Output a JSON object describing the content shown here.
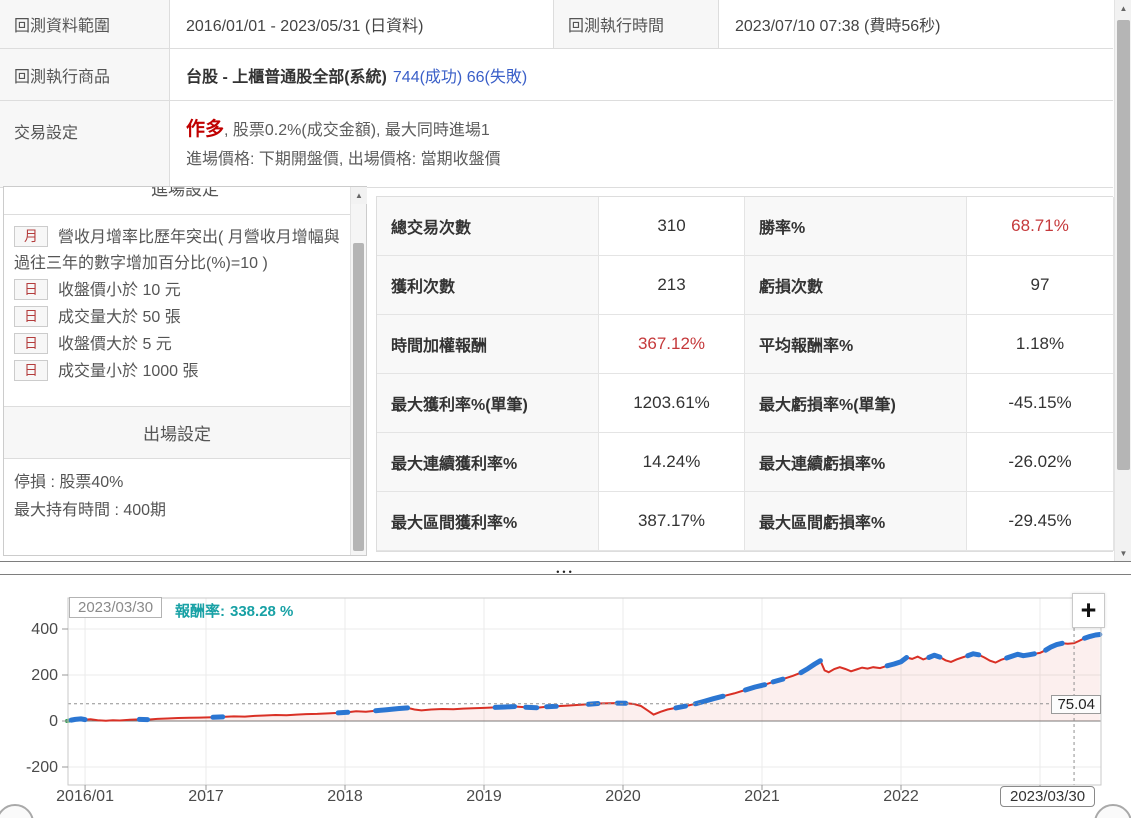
{
  "info": {
    "range_label": "回測資料範圍",
    "range_value": "2016/01/01 - 2023/05/31 (日資料)",
    "exec_label": "回測執行時間",
    "exec_value": "2023/07/10 07:38 (費時56秒)",
    "product_label": "回測執行商品",
    "product_name": "台股 - 上櫃普通股全部(系統)",
    "product_counts": "744(成功) 66(失敗)",
    "trade_label": "交易設定",
    "trade_direction": "作多",
    "trade_rest": ", 股票0.2%(成交金額), 最大同時進場1",
    "trade_line2": "進場價格: 下期開盤價, 出場價格: 當期收盤價"
  },
  "entry_panel": {
    "header_partial": "進場設定",
    "conditions": [
      {
        "badge": "月",
        "text": "營收月增率比歷年突出( 月營收月增幅與過往三年的數字增加百分比(%)=10 )"
      },
      {
        "badge": "日",
        "text": "收盤價小於 10 元"
      },
      {
        "badge": "日",
        "text": "成交量大於 50 張"
      },
      {
        "badge": "日",
        "text": "收盤價大於 5 元"
      },
      {
        "badge": "日",
        "text": "成交量小於 1000 張"
      }
    ],
    "exit_header": "出場設定",
    "exit_lines": [
      "停損 : 股票40%",
      "最大持有時間 : 400期"
    ]
  },
  "stats": {
    "rows": [
      {
        "l1": "總交易次數",
        "v1": "310",
        "r1": false,
        "l2": "勝率%",
        "v2": "68.71%",
        "r2": true
      },
      {
        "l1": "獲利次數",
        "v1": "213",
        "r1": false,
        "l2": "虧損次數",
        "v2": "97",
        "r2": false
      },
      {
        "l1": "時間加權報酬",
        "v1": "367.12%",
        "r1": true,
        "l2": "平均報酬率%",
        "v2": "1.18%",
        "r2": false
      },
      {
        "l1": "最大獲利率%(單筆)",
        "v1": "1203.61%",
        "r1": false,
        "l2": "最大虧損率%(單筆)",
        "v2": "-45.15%",
        "r2": false
      },
      {
        "l1": "最大連續獲利率%",
        "v1": "14.24%",
        "r1": false,
        "l2": "最大連續虧損率%",
        "v2": "-26.02%",
        "r2": false
      },
      {
        "l1": "最大區間獲利率%",
        "v1": "387.17%",
        "r1": false,
        "l2": "最大區間虧損率%",
        "v2": "-29.45%",
        "r2": false
      }
    ]
  },
  "chart": {
    "tooltip_date": "2023/03/30",
    "tooltip_label": "報酬率:",
    "tooltip_value": "338.28 %",
    "crosshair_value": "75.04",
    "crosshair_date": "2023/03/30",
    "zoom_button": "+"
  },
  "icons": {
    "scroll_up": "▲",
    "scroll_down": "▼",
    "splitter_dots": "•••"
  },
  "chart_data": {
    "type": "line",
    "series_name": "報酬率",
    "xlabel": "",
    "ylabel": "",
    "x_ticks": [
      {
        "t": 2016.13,
        "label": "2016/01"
      },
      {
        "t": 2017,
        "label": "2017"
      },
      {
        "t": 2018,
        "label": "2018"
      },
      {
        "t": 2019,
        "label": "2019"
      },
      {
        "t": 2020,
        "label": "2020"
      },
      {
        "t": 2021,
        "label": "2021"
      },
      {
        "t": 2022,
        "label": "2022"
      },
      {
        "t": 2023,
        "label": "2023"
      }
    ],
    "y_ticks": [
      400,
      200,
      0,
      -200
    ],
    "xlim": [
      2016.0,
      2023.45
    ],
    "ylim": [
      -278,
      535
    ],
    "grid": true,
    "crosshair": {
      "t": 2023.245,
      "value": 75.04,
      "date_label": "2023/03/30",
      "return_at_date": 338.28
    },
    "series": [
      {
        "name": "報酬率",
        "points": [
          [
            2016.0,
            0
          ],
          [
            2016.03,
            4
          ],
          [
            2016.06,
            7
          ],
          [
            2016.1,
            9
          ],
          [
            2016.13,
            6
          ],
          [
            2016.17,
            8
          ],
          [
            2016.22,
            3
          ],
          [
            2016.28,
            1
          ],
          [
            2016.33,
            3
          ],
          [
            2016.38,
            2
          ],
          [
            2016.45,
            5
          ],
          [
            2016.52,
            7
          ],
          [
            2016.58,
            6
          ],
          [
            2016.65,
            9
          ],
          [
            2016.72,
            11
          ],
          [
            2016.8,
            13
          ],
          [
            2016.88,
            14
          ],
          [
            2016.95,
            15
          ],
          [
            2017.05,
            16
          ],
          [
            2017.12,
            18
          ],
          [
            2017.2,
            20
          ],
          [
            2017.28,
            19
          ],
          [
            2017.35,
            22
          ],
          [
            2017.42,
            24
          ],
          [
            2017.5,
            26
          ],
          [
            2017.58,
            25
          ],
          [
            2017.65,
            28
          ],
          [
            2017.72,
            30
          ],
          [
            2017.8,
            31
          ],
          [
            2017.88,
            33
          ],
          [
            2017.95,
            35
          ],
          [
            2018.02,
            38
          ],
          [
            2018.08,
            42
          ],
          [
            2018.15,
            40
          ],
          [
            2018.22,
            45
          ],
          [
            2018.3,
            49
          ],
          [
            2018.38,
            54
          ],
          [
            2018.45,
            57
          ],
          [
            2018.5,
            50
          ],
          [
            2018.55,
            46
          ],
          [
            2018.62,
            50
          ],
          [
            2018.7,
            52
          ],
          [
            2018.78,
            51
          ],
          [
            2018.85,
            54
          ],
          [
            2018.92,
            55
          ],
          [
            2019.0,
            57
          ],
          [
            2019.08,
            59
          ],
          [
            2019.15,
            61
          ],
          [
            2019.22,
            63
          ],
          [
            2019.3,
            60
          ],
          [
            2019.38,
            58
          ],
          [
            2019.45,
            62
          ],
          [
            2019.52,
            64
          ],
          [
            2019.6,
            67
          ],
          [
            2019.68,
            70
          ],
          [
            2019.75,
            73
          ],
          [
            2019.82,
            76
          ],
          [
            2019.9,
            77
          ],
          [
            2019.96,
            78
          ],
          [
            2020.02,
            77
          ],
          [
            2020.08,
            74
          ],
          [
            2020.13,
            65
          ],
          [
            2020.18,
            45
          ],
          [
            2020.22,
            28
          ],
          [
            2020.27,
            40
          ],
          [
            2020.32,
            50
          ],
          [
            2020.38,
            57
          ],
          [
            2020.45,
            65
          ],
          [
            2020.52,
            75
          ],
          [
            2020.58,
            85
          ],
          [
            2020.65,
            97
          ],
          [
            2020.72,
            108
          ],
          [
            2020.8,
            120
          ],
          [
            2020.88,
            135
          ],
          [
            2020.95,
            148
          ],
          [
            2021.02,
            158
          ],
          [
            2021.08,
            170
          ],
          [
            2021.15,
            182
          ],
          [
            2021.22,
            196
          ],
          [
            2021.28,
            210
          ],
          [
            2021.33,
            228
          ],
          [
            2021.38,
            248
          ],
          [
            2021.42,
            262
          ],
          [
            2021.45,
            220
          ],
          [
            2021.48,
            212
          ],
          [
            2021.52,
            226
          ],
          [
            2021.56,
            234
          ],
          [
            2021.6,
            226
          ],
          [
            2021.64,
            216
          ],
          [
            2021.68,
            224
          ],
          [
            2021.72,
            232
          ],
          [
            2021.76,
            228
          ],
          [
            2021.8,
            234
          ],
          [
            2021.85,
            230
          ],
          [
            2021.9,
            240
          ],
          [
            2021.95,
            248
          ],
          [
            2022.0,
            258
          ],
          [
            2022.04,
            276
          ],
          [
            2022.08,
            270
          ],
          [
            2022.12,
            280
          ],
          [
            2022.16,
            268
          ],
          [
            2022.2,
            276
          ],
          [
            2022.24,
            286
          ],
          [
            2022.28,
            278
          ],
          [
            2022.32,
            264
          ],
          [
            2022.36,
            257
          ],
          [
            2022.4,
            268
          ],
          [
            2022.44,
            276
          ],
          [
            2022.48,
            284
          ],
          [
            2022.52,
            292
          ],
          [
            2022.56,
            288
          ],
          [
            2022.6,
            276
          ],
          [
            2022.64,
            262
          ],
          [
            2022.68,
            254
          ],
          [
            2022.72,
            266
          ],
          [
            2022.76,
            274
          ],
          [
            2022.8,
            282
          ],
          [
            2022.84,
            290
          ],
          [
            2022.88,
            284
          ],
          [
            2022.92,
            288
          ],
          [
            2022.96,
            292
          ],
          [
            2023.0,
            296
          ],
          [
            2023.04,
            308
          ],
          [
            2023.08,
            322
          ],
          [
            2023.12,
            332
          ],
          [
            2023.16,
            338
          ],
          [
            2023.2,
            336
          ],
          [
            2023.245,
            338.28
          ],
          [
            2023.28,
            348
          ],
          [
            2023.32,
            360
          ],
          [
            2023.36,
            368
          ],
          [
            2023.4,
            374
          ],
          [
            2023.43,
            376
          ]
        ]
      }
    ],
    "trade_segments": [
      [
        2016.03,
        2016.13
      ],
      [
        2016.5,
        2016.58
      ],
      [
        2016.7,
        2016.78
      ],
      [
        2017.05,
        2017.12
      ],
      [
        2017.18,
        2017.24
      ],
      [
        2017.33,
        2017.4
      ],
      [
        2017.48,
        2017.56
      ],
      [
        2017.93,
        2018.05
      ],
      [
        2018.1,
        2018.18
      ],
      [
        2018.22,
        2018.46
      ],
      [
        2018.8,
        2018.9
      ],
      [
        2019.06,
        2019.24
      ],
      [
        2019.3,
        2019.4
      ],
      [
        2019.44,
        2019.52
      ],
      [
        2019.58,
        2019.66
      ],
      [
        2019.72,
        2019.86
      ],
      [
        2019.94,
        2020.02
      ],
      [
        2020.34,
        2020.44
      ],
      [
        2020.52,
        2020.78
      ],
      [
        2020.86,
        2021.02
      ],
      [
        2021.08,
        2021.2
      ],
      [
        2021.26,
        2021.43
      ],
      [
        2021.88,
        2022.06
      ],
      [
        2022.18,
        2022.28
      ],
      [
        2022.46,
        2022.56
      ],
      [
        2022.74,
        2022.96
      ],
      [
        2023.02,
        2023.18
      ],
      [
        2023.3,
        2023.43
      ]
    ],
    "start_segment": [
      2016.0,
      2016.035
    ],
    "colors": {
      "line": "#d93025",
      "trade": "#2b76d2",
      "start": "#2e9e4f",
      "fill": "rgba(217,48,37,0.08)",
      "grid": "#ebebeb",
      "zero": "#7a7a7a",
      "crosshair": "#909090",
      "accent_teal": "#18a1a5",
      "accent_red": "#c5393b"
    }
  }
}
